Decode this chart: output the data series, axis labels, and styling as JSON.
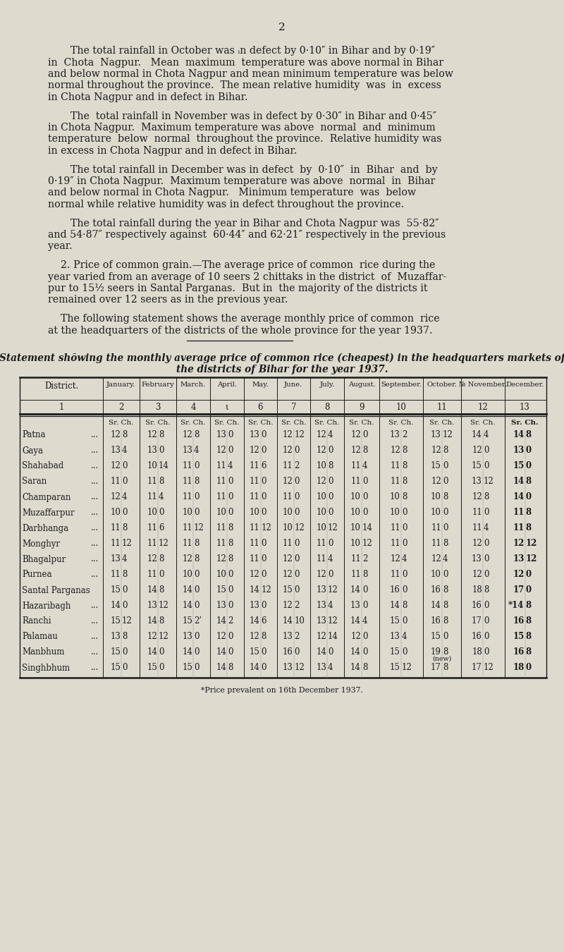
{
  "page_number": "2",
  "bg_color": "#dedace",
  "text_color": "#1a1a1a",
  "para1_lines": [
    "The total rainfall in October was ᵢn defect by 0·10″ in Bihar and by 0·19″",
    "in  Chota  Nagpur.   Mean  maximum  temperature was above normal in Bihar",
    "and below normal in Chota Nagpur and mean minimum temperature was below",
    "normal throughout the province.  The mean relative humidity  was  in  excess",
    "in Chota Nagpur and in defect in Bihar."
  ],
  "para2_lines": [
    "The  total rainfall in November was in defect by 0·30″ in Bihar and 0·45″",
    "in Chota Nagpur.  Maximum temperature was above  normal  and  minimum",
    "temperature  below  normal  throughout the province.  Relative humidity was",
    "in excess in Chota Nagpur and in defect in Bihar."
  ],
  "para3_lines": [
    "The total rainfall in December was in defect  by  0·10″  in  Bihar  and  by",
    "0·19″ in Chota Nagpur.  Maximum temperature was above  normal  in  Bihar",
    "and below normal in Chota Nagpur.   Minimum temperature  was  below",
    "normal while relative humidity was in defect throughout the province."
  ],
  "para4_lines": [
    "The total rainfall during the year in Bihar and Chota Nagpur was  55·82″",
    "and 54·87″ respectively against  60·44″ and 62·21″ respectively in the previous",
    "year."
  ],
  "para5_lines": [
    "    2. Price of common grain.—The average price of common  rice during the",
    "year varied from an average of 10 seers 2 chittaks in the district  of  Muzaffar-",
    "pur to 15½ seers in Santal Parganas.  But in  the majority of the districts it",
    "remained over 12 seers as in the previous year."
  ],
  "para6_lines": [
    "    The following statement shows the average monthly price of common  rice",
    "at the headquarters of the districts of the whole province for the year 1937."
  ],
  "statement_title_line1": "Statement shōwing the monthly average price of common rice (cheapest) in the headquarters markets of",
  "statement_title_line2": "the districts of Bihar for the year 1937.",
  "col_headers": [
    "District.",
    "January.",
    "February",
    "March.",
    "April.",
    "May.",
    "June.",
    "July.",
    "August.",
    "September.",
    "October.",
    "№ November.",
    "December."
  ],
  "col_nums": [
    "1",
    "2",
    "3",
    "4",
    "ι",
    "6",
    "7",
    "8",
    "9",
    "10",
    "11",
    "12",
    "13"
  ],
  "table_data": [
    [
      "Patna",
      "...",
      "12",
      "8",
      "12",
      "8",
      "12",
      "8",
      "13",
      "0",
      "13",
      "0",
      "12",
      "12",
      "12",
      "4",
      "12",
      "0",
      "13",
      "2",
      "13",
      "12",
      "14",
      "4",
      "14",
      "8"
    ],
    [
      "Gaya",
      "...",
      "13",
      "4",
      "13",
      "0",
      "13",
      "4",
      "12",
      "0",
      "12",
      "0",
      "12",
      "0",
      "12",
      "0",
      "12",
      "8",
      "12",
      "8",
      "12",
      "8",
      "12",
      "0",
      "13",
      "0"
    ],
    [
      "Shahabad",
      "...",
      "12",
      "0",
      "10",
      "14",
      "11",
      "0",
      "11",
      "4",
      "11",
      "6",
      "11",
      "2",
      "10",
      "8",
      "11",
      "4",
      "11",
      "8",
      "15",
      "0",
      "15",
      "0",
      "15",
      "0"
    ],
    [
      "Saran",
      "...",
      "11",
      "0",
      "11",
      "8",
      "11",
      "8",
      "11",
      "0",
      "11",
      "0",
      "12",
      "0",
      "12",
      "0",
      "11",
      "0",
      "11",
      "8",
      "12",
      "0",
      "13",
      "12",
      "14",
      "8"
    ],
    [
      "Champaran",
      "...",
      "12",
      "4",
      "11",
      "4",
      "11",
      "0",
      "11",
      "0",
      "11",
      "0",
      "11",
      "0",
      "10",
      "0",
      "10",
      "0",
      "10",
      "8",
      "10",
      "8",
      "12",
      "8",
      "14",
      "0"
    ],
    [
      "Muzaffarpur",
      "...",
      "10",
      "0",
      "10",
      "0",
      "10",
      "0",
      "10",
      "0",
      "10",
      "0",
      "10",
      "0",
      "10",
      "0",
      "10",
      "0",
      "10",
      "0",
      "10",
      "0",
      "11",
      "0",
      "11",
      "8"
    ],
    [
      "Darbhanga",
      "...",
      "11",
      "8",
      "11",
      "6",
      "11",
      "12",
      "11",
      "8",
      "11",
      "12",
      "10",
      "12",
      "10",
      "12",
      "10",
      "14",
      "11",
      "0",
      "11",
      "0",
      "11",
      "4",
      "11",
      "8"
    ],
    [
      "Monghyr",
      "...",
      "11",
      "12",
      "11",
      "12",
      "11",
      "8",
      "11",
      "8",
      "11",
      "0",
      "11",
      "0",
      "11",
      "0",
      "10",
      "12",
      "11",
      "0",
      "11",
      "8",
      "12",
      "0",
      "12",
      "12"
    ],
    [
      "Bhagalpur",
      "...",
      "13",
      "4",
      "12",
      "8",
      "12",
      "8",
      "12",
      "8",
      "11",
      "0",
      "12",
      "0",
      "11",
      "4",
      "11",
      "2",
      "12",
      "4",
      "12",
      "4",
      "13",
      "0",
      "13",
      "12"
    ],
    [
      "Purnea",
      "...",
      "11",
      "8",
      "11",
      "0",
      "10",
      "0",
      "10",
      "0",
      "12",
      "0",
      "12",
      "0",
      "12",
      "0",
      "11",
      "8",
      "11",
      "0",
      "10",
      "0",
      "12",
      "0",
      "12",
      "0"
    ],
    [
      "Santal Parganas",
      "",
      "15",
      "0",
      "14",
      "8",
      "14",
      "0",
      "15",
      "0",
      "14",
      "12",
      "15",
      "0",
      "13",
      "12",
      "14",
      "0",
      "16",
      "0",
      "16",
      "8",
      "18",
      "8",
      "17",
      "0"
    ],
    [
      "Hazaribagh",
      "...",
      "14",
      "0",
      "13",
      "12",
      "14",
      "0",
      "13",
      "0",
      "13",
      "0",
      "12",
      "2",
      "13",
      "4",
      "13",
      "0",
      "14",
      "8",
      "14",
      "8",
      "16",
      "0",
      "*14",
      "8"
    ],
    [
      "Ranchi",
      "...",
      "15",
      "12",
      "14",
      "8",
      "15",
      "2’",
      "14",
      "2",
      "14",
      "6",
      "14",
      "10",
      "13",
      "12",
      "14",
      "4",
      "15",
      "0",
      "16",
      "8",
      "17",
      "0",
      "16",
      "8"
    ],
    [
      "Palamau",
      "...",
      "13",
      "8",
      "12",
      "12",
      "13",
      "0",
      "12",
      "0",
      "12",
      "8",
      "13",
      "2",
      "12",
      "14",
      "12",
      "0",
      "13",
      "4",
      "15",
      "0",
      "16",
      "0",
      "15",
      "8"
    ],
    [
      "Manbhum",
      "...",
      "15",
      "0",
      "14",
      "0",
      "14",
      "0",
      "14",
      "0",
      "15",
      "0",
      "16",
      "0",
      "14",
      "0",
      "14",
      "0",
      "15",
      "0",
      "19",
      "8",
      "18",
      "0",
      "16",
      "8"
    ],
    [
      "Singhbhum",
      "...",
      "15",
      "0",
      "15",
      "0",
      "15",
      "0",
      "14",
      "8",
      "14",
      "0",
      "13",
      "12",
      "13",
      "4",
      "14",
      "8",
      "15",
      "12",
      "17",
      "8",
      "17",
      "12",
      "18",
      "0"
    ]
  ],
  "footnote": "*Price prevalent on 16th December 1937."
}
